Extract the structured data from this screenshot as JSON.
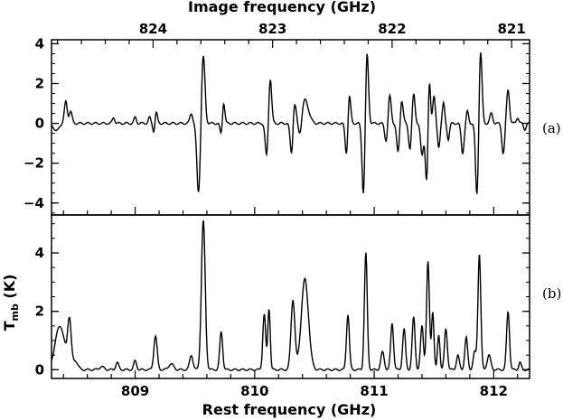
{
  "chart_data": [
    {
      "id": "panel_a",
      "type": "line",
      "panel_label": "(a)",
      "title": "",
      "top_axis_label": "Image frequency (GHz)",
      "top_ticks": [
        "824",
        "823",
        "822",
        "821"
      ],
      "top_tick_values": [
        824,
        823,
        822,
        821
      ],
      "xlim": [
        808.3,
        812.3
      ],
      "ylim": [
        -4.6,
        4.2
      ],
      "yticks": [
        -4,
        -2,
        0,
        2,
        4
      ],
      "ytick_labels": [
        "−4",
        "−2",
        "0",
        "2",
        "4"
      ],
      "series": [
        {
          "peaks": [
            [
              808.34,
              -0.4,
              0.02
            ],
            [
              808.42,
              1.1,
              0.012
            ],
            [
              808.46,
              0.6,
              0.012
            ],
            [
              808.82,
              0.3,
              0.01
            ],
            [
              809.0,
              0.3,
              0.01
            ],
            [
              809.12,
              0.3,
              0.01
            ],
            [
              809.17,
              0.9,
              0.012
            ],
            [
              809.16,
              -0.9,
              0.01
            ],
            [
              809.47,
              0.5,
              0.012
            ],
            [
              809.53,
              -3.5,
              0.014
            ],
            [
              809.57,
              3.4,
              0.014
            ],
            [
              809.72,
              -0.6,
              0.01
            ],
            [
              809.74,
              1.1,
              0.01
            ],
            [
              810.1,
              -1.7,
              0.012
            ],
            [
              810.13,
              2.3,
              0.012
            ],
            [
              810.33,
              1.2,
              0.015
            ],
            [
              810.31,
              -1.9,
              0.012
            ],
            [
              810.38,
              -0.9,
              0.015
            ],
            [
              810.42,
              1.2,
              0.03
            ],
            [
              810.77,
              -1.8,
              0.012
            ],
            [
              810.79,
              1.7,
              0.012
            ],
            [
              810.91,
              -3.6,
              0.012
            ],
            [
              810.94,
              3.6,
              0.012
            ],
            [
              811.1,
              -0.9,
              0.012
            ],
            [
              811.13,
              1.4,
              0.012
            ],
            [
              811.2,
              -1.5,
              0.012
            ],
            [
              811.23,
              1.2,
              0.012
            ],
            [
              811.3,
              -1.3,
              0.012
            ],
            [
              811.33,
              1.5,
              0.012
            ],
            [
              811.4,
              -1.6,
              0.012
            ],
            [
              811.44,
              -3.1,
              0.012
            ],
            [
              811.46,
              2.6,
              0.01
            ],
            [
              811.5,
              1.4,
              0.01
            ],
            [
              811.54,
              -1.2,
              0.01
            ],
            [
              811.58,
              1.0,
              0.01
            ],
            [
              811.62,
              -0.8,
              0.01
            ],
            [
              811.74,
              -1.5,
              0.012
            ],
            [
              811.78,
              0.6,
              0.01
            ],
            [
              811.86,
              -3.7,
              0.012
            ],
            [
              811.89,
              3.7,
              0.012
            ],
            [
              811.98,
              0.5,
              0.012
            ],
            [
              812.08,
              -1.5,
              0.012
            ],
            [
              812.12,
              1.7,
              0.012
            ],
            [
              812.2,
              0.3,
              0.01
            ],
            [
              812.26,
              -0.3,
              0.01
            ]
          ]
        }
      ]
    },
    {
      "id": "panel_b",
      "type": "line",
      "panel_label": "(b)",
      "title": "",
      "xlabel": "Rest frequency (GHz)",
      "ylabel": "T",
      "ylabel_sub": "mb",
      "ylabel_unit": " (K)",
      "xlim": [
        808.3,
        812.3
      ],
      "xticks": [
        809,
        810,
        811,
        812
      ],
      "xtick_labels": [
        "809",
        "810",
        "811",
        "812"
      ],
      "ylim": [
        -0.3,
        5.3
      ],
      "yticks": [
        0,
        2,
        4
      ],
      "ytick_labels": [
        "0",
        "2",
        "4"
      ],
      "series": [
        {
          "peaks": [
            [
              808.37,
              1.5,
              0.04
            ],
            [
              808.45,
              1.6,
              0.015
            ],
            [
              808.5,
              0.3,
              0.02
            ],
            [
              808.72,
              0.1,
              0.02
            ],
            [
              808.85,
              0.25,
              0.012
            ],
            [
              809.0,
              0.3,
              0.012
            ],
            [
              809.17,
              1.15,
              0.014
            ],
            [
              809.3,
              0.2,
              0.02
            ],
            [
              809.47,
              0.5,
              0.014
            ],
            [
              809.57,
              5.1,
              0.016
            ],
            [
              809.72,
              1.3,
              0.012
            ],
            [
              810.08,
              1.9,
              0.012
            ],
            [
              810.12,
              2.1,
              0.01
            ],
            [
              810.32,
              2.4,
              0.016
            ],
            [
              810.42,
              3.1,
              0.03
            ],
            [
              810.78,
              1.9,
              0.012
            ],
            [
              810.93,
              4.0,
              0.012
            ],
            [
              811.07,
              0.6,
              0.014
            ],
            [
              811.15,
              1.6,
              0.012
            ],
            [
              811.25,
              1.4,
              0.012
            ],
            [
              811.33,
              1.8,
              0.012
            ],
            [
              811.4,
              1.5,
              0.012
            ],
            [
              811.45,
              3.7,
              0.012
            ],
            [
              811.49,
              2.0,
              0.01
            ],
            [
              811.54,
              1.2,
              0.01
            ],
            [
              811.6,
              1.4,
              0.012
            ],
            [
              811.7,
              0.5,
              0.012
            ],
            [
              811.77,
              1.1,
              0.012
            ],
            [
              811.84,
              0.6,
              0.012
            ],
            [
              811.88,
              4.0,
              0.012
            ],
            [
              811.96,
              0.5,
              0.015
            ],
            [
              812.12,
              2.0,
              0.012
            ],
            [
              812.22,
              0.25,
              0.01
            ]
          ]
        }
      ]
    }
  ]
}
